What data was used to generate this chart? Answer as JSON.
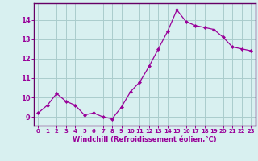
{
  "x": [
    0,
    1,
    2,
    3,
    4,
    5,
    6,
    7,
    8,
    9,
    10,
    11,
    12,
    13,
    14,
    15,
    16,
    17,
    18,
    19,
    20,
    21,
    22,
    23
  ],
  "y": [
    9.2,
    9.6,
    10.2,
    9.8,
    9.6,
    9.1,
    9.2,
    9.0,
    8.9,
    9.5,
    10.3,
    10.8,
    11.6,
    12.5,
    13.4,
    14.5,
    13.9,
    13.7,
    13.6,
    13.5,
    13.1,
    12.6,
    12.5,
    12.4
  ],
  "line_color": "#990099",
  "marker": "D",
  "marker_size": 2.0,
  "bg_color": "#d8f0f0",
  "grid_color": "#aacccc",
  "xlabel": "Windchill (Refroidissement éolien,°C)",
  "xlabel_color": "#990099",
  "tick_color": "#990099",
  "ylabel_ticks": [
    9,
    10,
    11,
    12,
    13,
    14
  ],
  "ylim": [
    8.55,
    14.85
  ],
  "xlim": [
    -0.5,
    23.5
  ]
}
